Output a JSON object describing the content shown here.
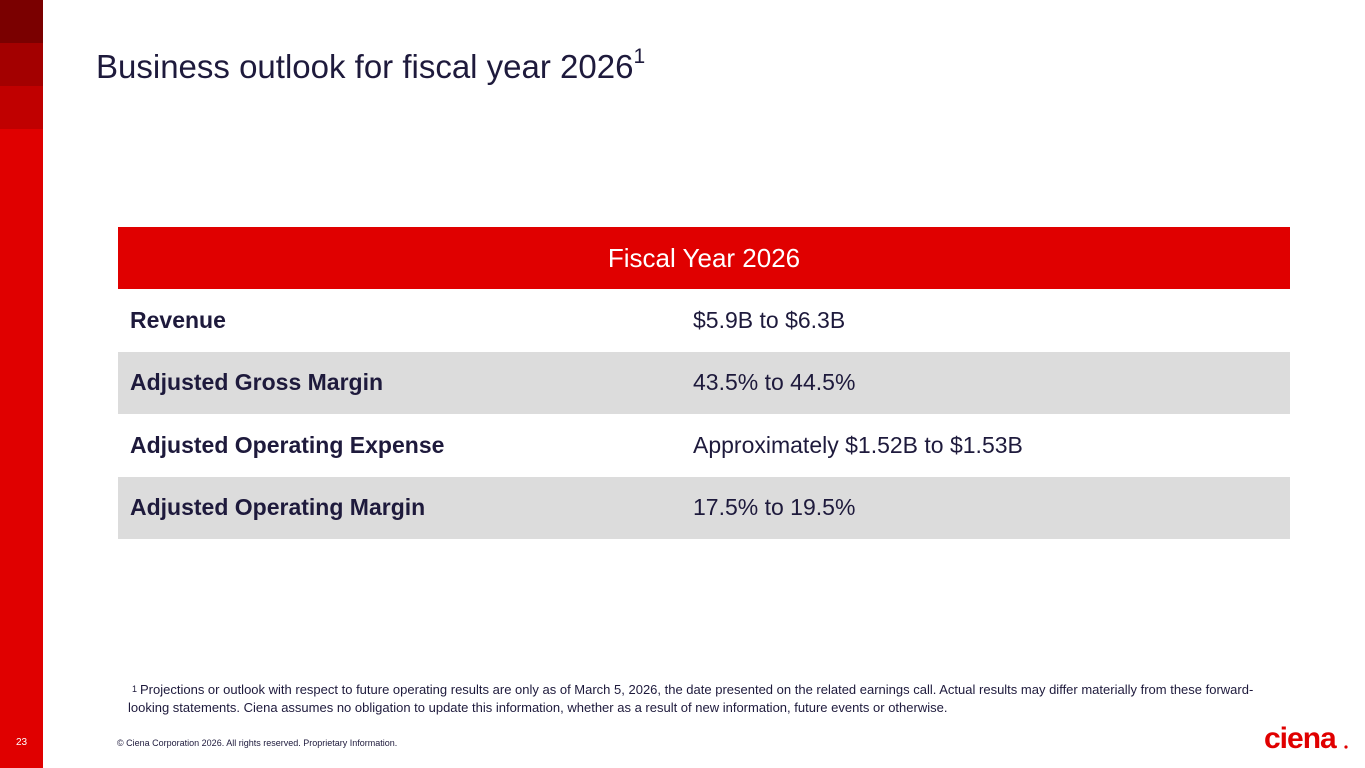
{
  "slide": {
    "title": "Business outlook for fiscal year 2026",
    "title_footnote_mark": "1",
    "page_number": "23"
  },
  "table": {
    "header": "Fiscal Year 2026",
    "rows": [
      {
        "label": "Revenue",
        "value": "$5.9B to $6.3B"
      },
      {
        "label": "Adjusted Gross Margin",
        "value": "43.5% to 44.5%"
      },
      {
        "label": "Adjusted Operating Expense",
        "value": "Approximately $1.52B to $1.53B"
      },
      {
        "label": "Adjusted Operating Margin",
        "value": "17.5% to 19.5%"
      }
    ]
  },
  "footnote": {
    "mark": "1",
    "text": "Projections or outlook with respect to future operating results are only as of March 5, 2026, the date presented on the related earnings call. Actual results may differ materially from these forward-looking statements. Ciena assumes no obligation to update this information, whether as a result of new information, future events or otherwise."
  },
  "footer": {
    "copyright": "© Ciena Corporation 2026. All rights reserved. Proprietary Information.",
    "logo_text": "ciena"
  },
  "colors": {
    "brand_red": "#e00000",
    "text_dark": "#1e1a3c",
    "row_alt": "#dcdcdc"
  }
}
